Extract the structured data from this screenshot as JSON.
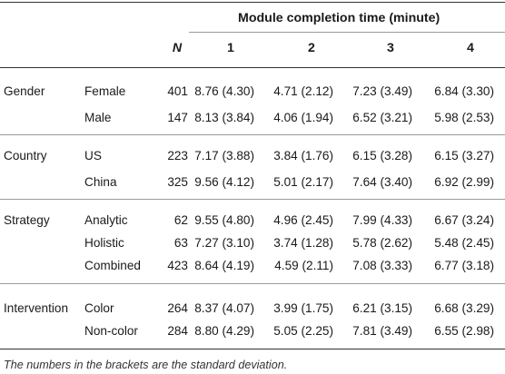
{
  "table": {
    "header_title": "Module completion time (minute)",
    "col_n": "N",
    "col_1": "1",
    "col_2": "2",
    "col_3": "3",
    "col_4": "4",
    "rows": [
      {
        "category": "Gender",
        "sub": "Female",
        "n": "401",
        "m1": "8.76 (4.30)",
        "m2": "4.71 (2.12)",
        "m3": "7.23 (3.49)",
        "m4": "6.84 (3.30)"
      },
      {
        "category": "",
        "sub": "Male",
        "n": "147",
        "m1": "8.13 (3.84)",
        "m2": "4.06 (1.94)",
        "m3": "6.52 (3.21)",
        "m4": "5.98 (2.53)"
      },
      {
        "category": "Country",
        "sub": "US",
        "n": "223",
        "m1": "7.17 (3.88)",
        "m2": "3.84 (1.76)",
        "m3": "6.15 (3.28)",
        "m4": "6.15 (3.27)"
      },
      {
        "category": "",
        "sub": "China",
        "n": "325",
        "m1": "9.56 (4.12)",
        "m2": "5.01 (2.17)",
        "m3": "7.64 (3.40)",
        "m4": "6.92 (2.99)"
      },
      {
        "category": "Strategy",
        "sub": "Analytic",
        "n": "62",
        "m1": "9.55 (4.80)",
        "m2": "4.96 (2.45)",
        "m3": "7.99 (4.33)",
        "m4": "6.67 (3.24)"
      },
      {
        "category": "",
        "sub": "Holistic",
        "n": "63",
        "m1": "7.27 (3.10)",
        "m2": "3.74 (1.28)",
        "m3": "5.78 (2.62)",
        "m4": "5.48 (2.45)"
      },
      {
        "category": "",
        "sub": "Combined",
        "n": "423",
        "m1": "8.64 (4.19)",
        "m2": "4.59 (2.11)",
        "m3": "7.08 (3.33)",
        "m4": "6.77 (3.18)"
      },
      {
        "category": "Intervention",
        "sub": "Color",
        "n": "264",
        "m1": "8.37 (4.07)",
        "m2": "3.99 (1.75)",
        "m3": "6.21 (3.15)",
        "m4": "6.68 (3.29)"
      },
      {
        "category": "",
        "sub": "Non-color",
        "n": "284",
        "m1": "8.80 (4.29)",
        "m2": "5.05 (2.25)",
        "m3": "7.81 (3.49)",
        "m4": "6.55 (2.98)"
      }
    ],
    "footnote": "The numbers in the brackets are the standard deviation."
  }
}
